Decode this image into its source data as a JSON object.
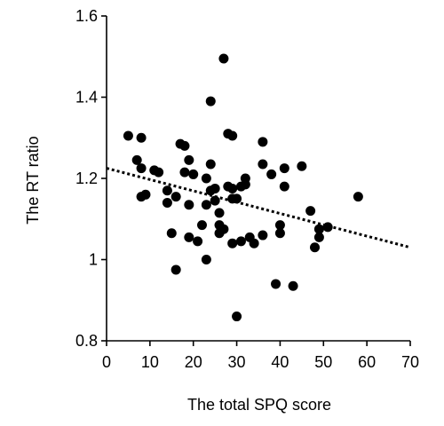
{
  "chart_data": {
    "type": "scatter",
    "title": "",
    "xlabel": "The total SPQ score",
    "ylabel": "The RT ratio",
    "xlim": [
      0,
      70
    ],
    "ylim": [
      0.8,
      1.6
    ],
    "x_ticks": [
      0,
      10,
      20,
      30,
      40,
      50,
      60,
      70
    ],
    "y_ticks": [
      0.8,
      1,
      1.2,
      1.4,
      1.6
    ],
    "x_tick_labels": [
      "0",
      "10",
      "20",
      "30",
      "40",
      "50",
      "60",
      "70"
    ],
    "y_tick_labels": [
      "0.8",
      "1",
      "1.2",
      "1.4",
      "1.6"
    ],
    "grid": false,
    "legend": "none",
    "point_color": "#000000",
    "points": [
      {
        "x": 5,
        "y": 1.305
      },
      {
        "x": 7,
        "y": 1.245
      },
      {
        "x": 8,
        "y": 1.3
      },
      {
        "x": 8,
        "y": 1.225
      },
      {
        "x": 8,
        "y": 1.155
      },
      {
        "x": 9,
        "y": 1.16
      },
      {
        "x": 11,
        "y": 1.22
      },
      {
        "x": 12,
        "y": 1.215
      },
      {
        "x": 14,
        "y": 1.17
      },
      {
        "x": 14,
        "y": 1.14
      },
      {
        "x": 15,
        "y": 1.065
      },
      {
        "x": 16,
        "y": 0.975
      },
      {
        "x": 16,
        "y": 1.155
      },
      {
        "x": 17,
        "y": 1.285
      },
      {
        "x": 18,
        "y": 1.28
      },
      {
        "x": 18,
        "y": 1.215
      },
      {
        "x": 19,
        "y": 1.245
      },
      {
        "x": 19,
        "y": 1.135
      },
      {
        "x": 19,
        "y": 1.055
      },
      {
        "x": 20,
        "y": 1.21
      },
      {
        "x": 21,
        "y": 1.045
      },
      {
        "x": 22,
        "y": 1.085
      },
      {
        "x": 23,
        "y": 1.2
      },
      {
        "x": 23,
        "y": 1.135
      },
      {
        "x": 23,
        "y": 1.0
      },
      {
        "x": 24,
        "y": 1.39
      },
      {
        "x": 24,
        "y": 1.235
      },
      {
        "x": 24,
        "y": 1.17
      },
      {
        "x": 25,
        "y": 1.175
      },
      {
        "x": 25,
        "y": 1.145
      },
      {
        "x": 26,
        "y": 1.115
      },
      {
        "x": 26,
        "y": 1.085
      },
      {
        "x": 26,
        "y": 1.065
      },
      {
        "x": 27,
        "y": 1.495
      },
      {
        "x": 27,
        "y": 1.075
      },
      {
        "x": 28,
        "y": 1.31
      },
      {
        "x": 28,
        "y": 1.18
      },
      {
        "x": 29,
        "y": 1.305
      },
      {
        "x": 29,
        "y": 1.175
      },
      {
        "x": 29,
        "y": 1.15
      },
      {
        "x": 29,
        "y": 1.04
      },
      {
        "x": 30,
        "y": 1.15
      },
      {
        "x": 30,
        "y": 0.86
      },
      {
        "x": 31,
        "y": 1.18
      },
      {
        "x": 31,
        "y": 1.045
      },
      {
        "x": 32,
        "y": 1.2
      },
      {
        "x": 32,
        "y": 1.185
      },
      {
        "x": 33,
        "y": 1.055
      },
      {
        "x": 34,
        "y": 1.04
      },
      {
        "x": 36,
        "y": 1.29
      },
      {
        "x": 36,
        "y": 1.235
      },
      {
        "x": 36,
        "y": 1.06
      },
      {
        "x": 38,
        "y": 1.21
      },
      {
        "x": 39,
        "y": 0.94
      },
      {
        "x": 40,
        "y": 1.085
      },
      {
        "x": 40,
        "y": 1.065
      },
      {
        "x": 41,
        "y": 1.225
      },
      {
        "x": 41,
        "y": 1.18
      },
      {
        "x": 43,
        "y": 0.935
      },
      {
        "x": 45,
        "y": 1.23
      },
      {
        "x": 47,
        "y": 1.12
      },
      {
        "x": 48,
        "y": 1.03
      },
      {
        "x": 49,
        "y": 1.075
      },
      {
        "x": 49,
        "y": 1.055
      },
      {
        "x": 51,
        "y": 1.08
      },
      {
        "x": 58,
        "y": 1.155
      }
    ],
    "trendline": {
      "style": "dotted",
      "x": [
        0,
        70
      ],
      "y": [
        1.225,
        1.03
      ]
    }
  }
}
